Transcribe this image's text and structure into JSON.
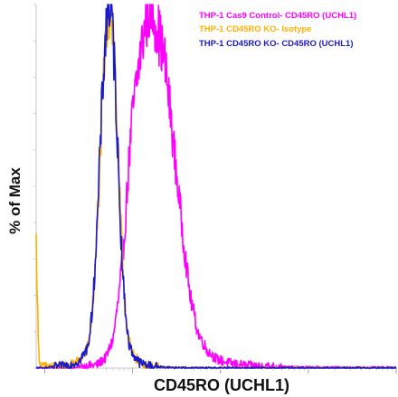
{
  "chart_data": {
    "type": "line",
    "title": "",
    "xlabel": "CD45RO (UCHL1)",
    "ylabel": "% of Max",
    "x_scale": "log",
    "xlim": [
      0.08,
      1000
    ],
    "ylim": [
      0,
      100
    ],
    "grid": false,
    "legend_position": "top-right",
    "series": [
      {
        "name": "THP-1 Cas9 Control- CD45RO (UCHL1)",
        "color": "#ff00ff",
        "x": [
          0.08,
          0.2,
          0.3,
          0.4,
          0.5,
          0.6,
          0.7,
          0.8,
          0.9,
          1.0,
          1.2,
          1.4,
          1.6,
          1.9,
          2.3,
          2.7,
          3.2,
          3.8,
          4.5,
          5.5,
          7,
          9,
          12,
          16,
          20,
          30,
          50,
          100,
          300,
          1000
        ],
        "y": [
          0,
          0,
          0.5,
          1,
          3,
          8,
          20,
          35,
          55,
          70,
          85,
          95,
          100,
          94,
          85,
          70,
          52,
          35,
          20,
          10,
          5,
          2.5,
          1.5,
          1,
          0.7,
          0.5,
          0.3,
          0.2,
          0.1,
          0.1
        ]
      },
      {
        "name": "THP-1 CD45RO KO- Isotype",
        "color": "#ffb000",
        "x": [
          0.08,
          0.085,
          0.09,
          0.1,
          0.15,
          0.2,
          0.25,
          0.3,
          0.33,
          0.36,
          0.4,
          0.44,
          0.48,
          0.52,
          0.56,
          0.6,
          0.65,
          0.7,
          0.75,
          0.8,
          0.85,
          0.9,
          1.0,
          1.2,
          1.5,
          2,
          3,
          5
        ],
        "y": [
          35,
          5,
          0.5,
          0.5,
          0.5,
          1,
          2,
          5,
          10,
          20,
          40,
          65,
          85,
          97,
          100,
          93,
          75,
          52,
          35,
          22,
          14,
          8,
          4,
          1.5,
          0.5,
          0.3,
          0.1,
          0
        ]
      },
      {
        "name": "THP-1 CD45RO KO- CD45RO (UCHL1)",
        "color": "#1a1acc",
        "x": [
          0.08,
          0.1,
          0.15,
          0.2,
          0.25,
          0.3,
          0.33,
          0.36,
          0.4,
          0.44,
          0.48,
          0.52,
          0.56,
          0.6,
          0.65,
          0.7,
          0.75,
          0.8,
          0.85,
          0.9,
          1.0,
          1.2,
          1.5,
          2,
          3,
          5
        ],
        "y": [
          0,
          0,
          0.5,
          1,
          2,
          5,
          10,
          21,
          42,
          68,
          88,
          98,
          100,
          91,
          73,
          50,
          33,
          20,
          13,
          7,
          4,
          1.5,
          0.7,
          0.3,
          0.1,
          0
        ]
      }
    ]
  }
}
